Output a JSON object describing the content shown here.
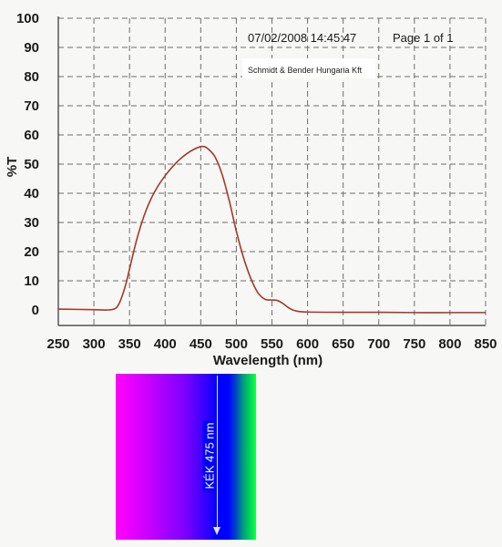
{
  "chart_data": {
    "type": "line",
    "ylabel": "%T",
    "xlabel": "Wavelength (nm)",
    "xlim": [
      250,
      850
    ],
    "ylim": [
      0,
      100
    ],
    "x_ticks": [
      250,
      300,
      350,
      400,
      450,
      500,
      550,
      600,
      650,
      700,
      750,
      800,
      850
    ],
    "y_ticks": [
      0,
      10,
      20,
      30,
      40,
      50,
      60,
      70,
      80,
      90,
      100
    ],
    "grid": true,
    "series": [
      {
        "color": "#a33a2a",
        "points": [
          [
            250,
            0.3
          ],
          [
            300,
            0.1
          ],
          [
            320,
            0.0
          ],
          [
            330,
            0.5
          ],
          [
            335,
            2.0
          ],
          [
            340,
            5.0
          ],
          [
            345,
            9.0
          ],
          [
            350,
            14.0
          ],
          [
            360,
            24.0
          ],
          [
            370,
            32.0
          ],
          [
            380,
            38.0
          ],
          [
            390,
            42.5
          ],
          [
            400,
            46.0
          ],
          [
            410,
            49.0
          ],
          [
            420,
            51.5
          ],
          [
            430,
            53.5
          ],
          [
            440,
            55.0
          ],
          [
            450,
            56.0
          ],
          [
            455,
            56.0
          ],
          [
            460,
            55.3
          ],
          [
            470,
            52.5
          ],
          [
            480,
            46.5
          ],
          [
            490,
            37.5
          ],
          [
            500,
            27.0
          ],
          [
            510,
            18.0
          ],
          [
            520,
            11.0
          ],
          [
            530,
            6.0
          ],
          [
            540,
            3.7
          ],
          [
            550,
            3.4
          ],
          [
            557,
            3.3
          ],
          [
            565,
            2.3
          ],
          [
            575,
            0.5
          ],
          [
            585,
            -0.4
          ],
          [
            600,
            -0.7
          ],
          [
            650,
            -0.8
          ],
          [
            700,
            -0.8
          ],
          [
            750,
            -0.9
          ],
          [
            800,
            -0.9
          ],
          [
            850,
            -0.9
          ]
        ]
      }
    ]
  },
  "header": {
    "datetime": "07/02/2008 14:45:47",
    "page": "Page 1 of 1",
    "company": "Schmidt & Bender Hungaria Kft"
  },
  "spectrum": {
    "label": "KÉK 475 nm"
  }
}
